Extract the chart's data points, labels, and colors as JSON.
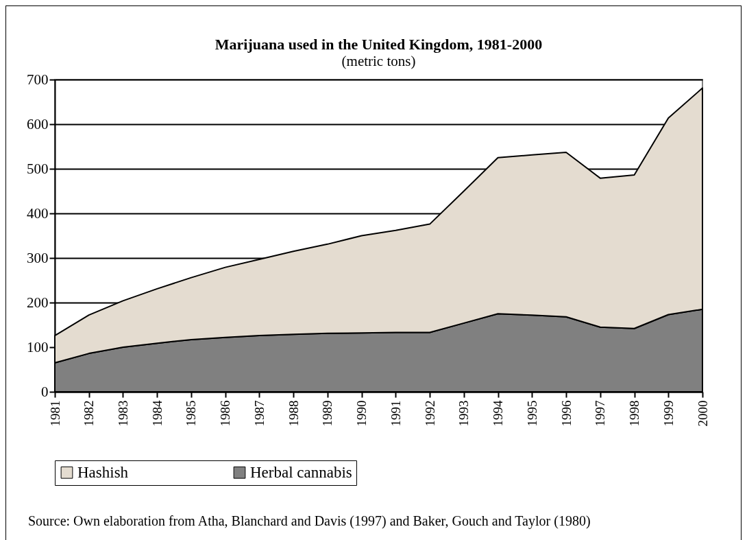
{
  "chart_data": {
    "type": "area",
    "title": "Marijuana used in the United Kingdom, 1981-2000",
    "subtitle": "(metric tons)",
    "categories": [
      "1981",
      "1982",
      "1983",
      "1984",
      "1985",
      "1986",
      "1987",
      "1988",
      "1989",
      "1990",
      "1991",
      "1992",
      "1993",
      "1994",
      "1995",
      "1996",
      "1997",
      "1998",
      "1999",
      "2000"
    ],
    "stacked": true,
    "series": [
      {
        "name": "Herbal cannabis",
        "color": "#808080",
        "values": [
          65,
          86,
          100,
          109,
          117,
          122,
          126,
          129,
          131,
          132,
          133,
          133,
          154,
          175,
          172,
          168,
          145,
          142,
          173,
          185
        ]
      },
      {
        "name": "Hashish",
        "color": "#e4dcd0",
        "values": [
          61,
          86,
          104,
          122,
          139,
          157,
          171,
          186,
          200,
          218,
          229,
          243,
          296,
          350,
          359,
          369,
          334,
          344,
          441,
          496
        ]
      }
    ],
    "ylim": [
      0,
      700
    ],
    "yticks": [
      0,
      100,
      200,
      300,
      400,
      500,
      600,
      700
    ],
    "grid": "y",
    "legend": "bottom",
    "annotations": [
      "Source: Own elaboration from Atha, Blanchard and Davis (1997) and Baker, Gouch and Taylor (1980)"
    ]
  }
}
